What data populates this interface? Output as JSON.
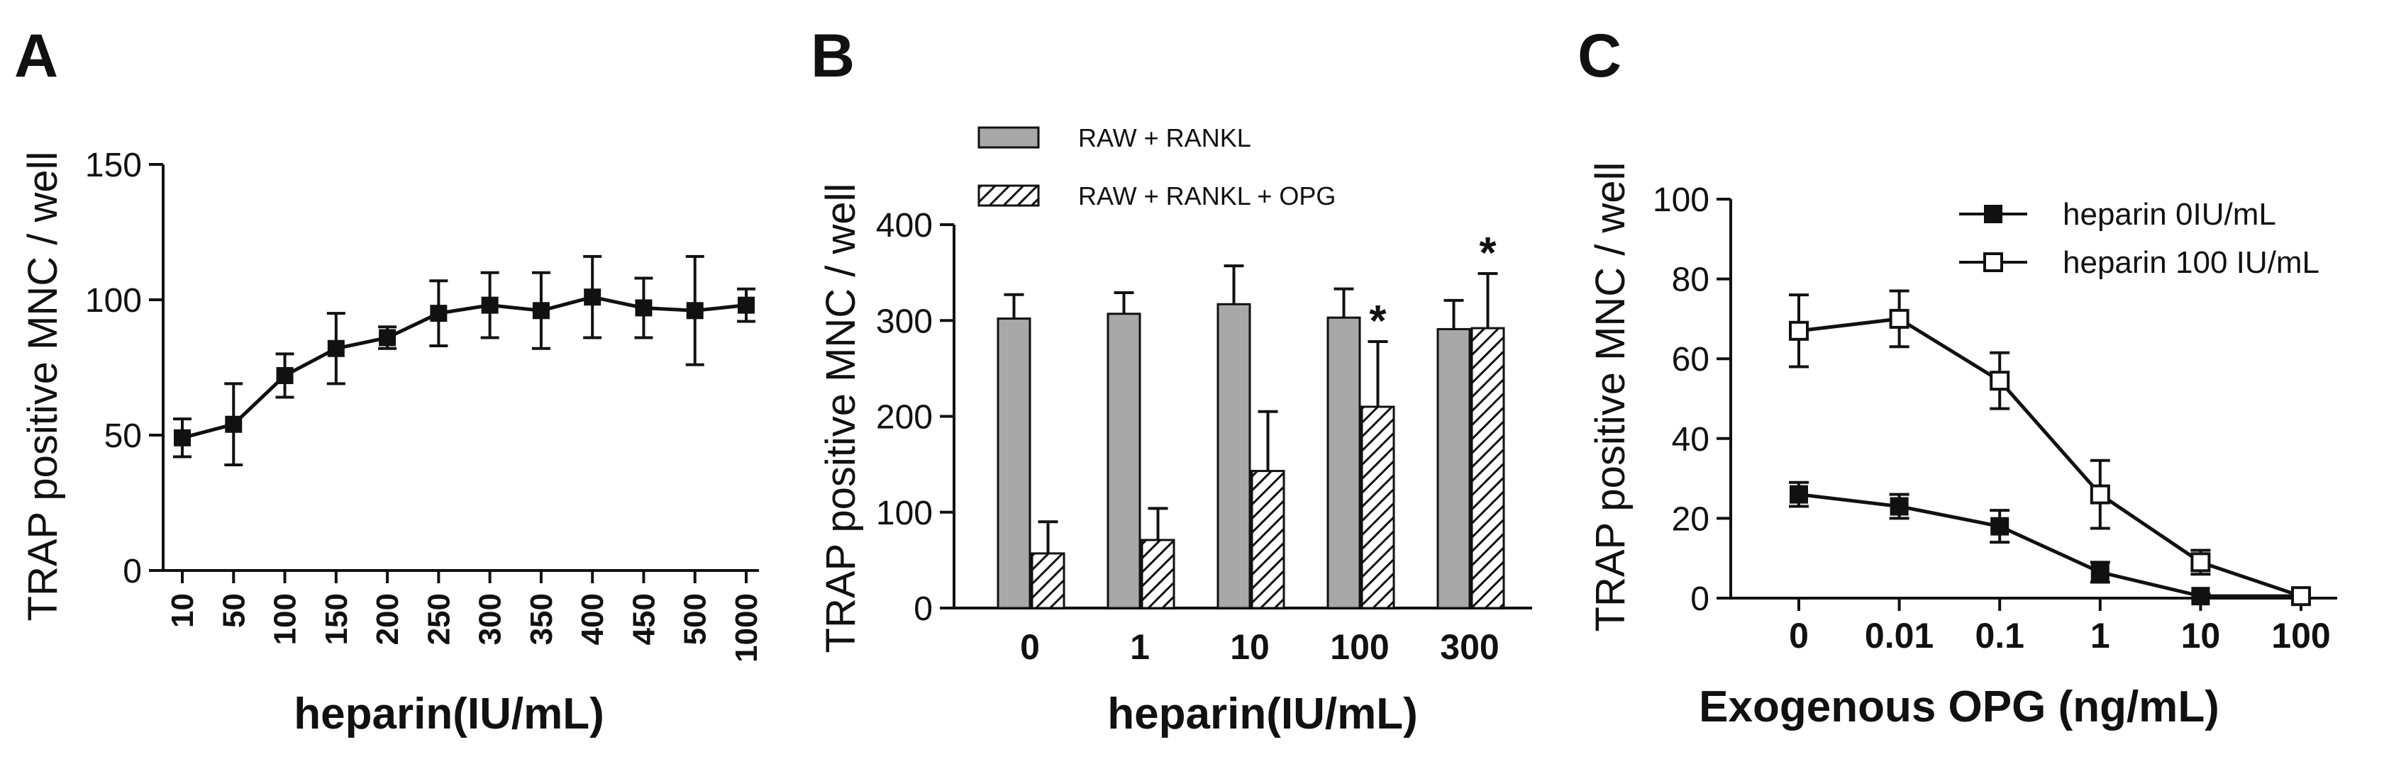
{
  "chart_data": [
    {
      "type": "line",
      "panel_label": "A",
      "xlabel": "heparin(IU/mL)",
      "ylabel": "TRAP positive MNC / well",
      "ylim": [
        0,
        150
      ],
      "yticks": [
        "0",
        "50",
        "100",
        "150"
      ],
      "categories": [
        "10",
        "50",
        "100",
        "150",
        "200",
        "250",
        "300",
        "350",
        "400",
        "450",
        "500",
        "1000"
      ],
      "series": [
        {
          "values": [
            49,
            54,
            72,
            82,
            86,
            95,
            98,
            96,
            101,
            97,
            96,
            98
          ],
          "errors": [
            7,
            15,
            8,
            13,
            4,
            12,
            12,
            14,
            15,
            11,
            20,
            6
          ]
        }
      ]
    },
    {
      "type": "bar",
      "panel_label": "B",
      "xlabel": "heparin(IU/mL)",
      "ylabel": "TRAP positive MNC / well",
      "ylim": [
        0,
        400
      ],
      "yticks": [
        "0",
        "100",
        "200",
        "300",
        "400"
      ],
      "categories": [
        "0",
        "1",
        "10",
        "100",
        "300"
      ],
      "series": [
        {
          "name": "RAW + RANKL",
          "values": [
            302,
            307,
            317,
            303,
            291
          ],
          "errors": [
            25,
            22,
            40,
            30,
            30
          ]
        },
        {
          "name": "RAW + RANKL + OPG",
          "values": [
            57,
            71,
            143,
            210,
            292
          ],
          "errors": [
            33,
            33,
            62,
            68,
            57
          ]
        }
      ],
      "annotations": [
        {
          "category": "100",
          "text": "*"
        },
        {
          "category": "300",
          "text": "*"
        }
      ]
    },
    {
      "type": "line",
      "panel_label": "C",
      "xlabel": "Exogenous OPG (ng/mL)",
      "ylabel": "TRAP positive MNC / well",
      "ylim": [
        0,
        100
      ],
      "yticks": [
        "0",
        "20",
        "40",
        "60",
        "80",
        "100"
      ],
      "categories": [
        "0",
        "0.01",
        "0.1",
        "1",
        "10",
        "100"
      ],
      "series": [
        {
          "name": "heparin 0IU/mL",
          "marker": "filled-square",
          "values": [
            26,
            23,
            18,
            6.5,
            0.5,
            0.5
          ],
          "errors": [
            3,
            3,
            4,
            2.5,
            0.5,
            0.5
          ]
        },
        {
          "name": "heparin 100 IU/mL",
          "marker": "open-square",
          "values": [
            67,
            70,
            54.5,
            26,
            9,
            0.5
          ],
          "errors": [
            9,
            7,
            7,
            8.5,
            3,
            0.5
          ]
        }
      ]
    }
  ]
}
